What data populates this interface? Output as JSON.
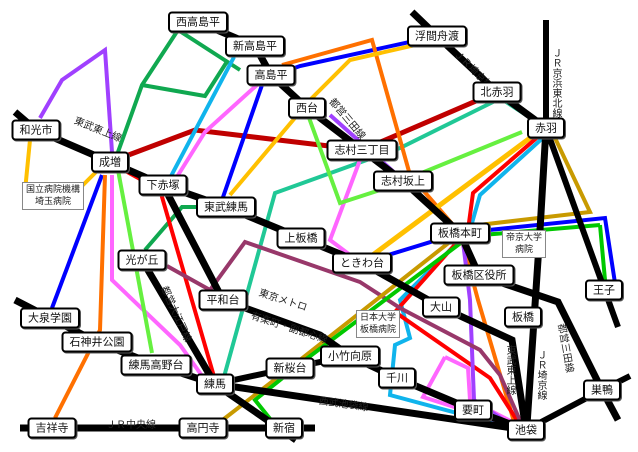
{
  "stations": [
    "西高島平",
    "新高島平",
    "高島平",
    "浮間舟渡",
    "西台",
    "北赤羽",
    "赤羽",
    "和光市",
    "成増",
    "志村三丁目",
    "志村坂上",
    "下赤塚",
    "東武練馬",
    "上板橋",
    "ときわ台",
    "板橋本町",
    "板橋区役所",
    "王子",
    "光が丘",
    "平和台",
    "大山",
    "板橋",
    "大泉学園",
    "石神井公園",
    "小竹向原",
    "練馬高野台",
    "新桜台",
    "練馬",
    "千川",
    "巣鴨",
    "要町",
    "吉祥寺",
    "高円寺",
    "新宿",
    "池袋"
  ],
  "hospitals": [
    "国立病院機構\n埼玉病院",
    "帝京大学\n病院",
    "日本大学\n板橋病院"
  ],
  "line_labels": {
    "tobu_tojo_west": "東武東上線",
    "jr_saikyo_north": "ＪＲ埼京線",
    "jr_keihin_tohoku": "ＪＲ京浜東北線",
    "toei_mita_north": "都営三田線",
    "toei_oedo": "都営大江戸線",
    "metro_yurakucho_1": "東京メトロ",
    "metro_yurakucho_2": "有楽町・副都心線",
    "seibu_ikebukuro": "西武池袋線",
    "tobu_tojo_south": "東武東上線",
    "jr_saikyo_south": "ＪＲ埼京線",
    "toei_mita_south": "都営三田線",
    "jr_chuo": "ＪＲ中央線"
  },
  "colors": {
    "rail": "#000000",
    "dark_red": "#c00000",
    "teal": "#20c896",
    "green": "#10a850",
    "cyan": "#10b4ec",
    "pink": "#ff66ff",
    "blue": "#0000ff",
    "orange": "#ff7000",
    "yellow": "#ffc000",
    "light_green": "#66f040",
    "red": "#ff0000",
    "purple": "#a040ff",
    "maroon": "#98386a",
    "gold": "#c89a00",
    "bright_green": "#00c800"
  }
}
